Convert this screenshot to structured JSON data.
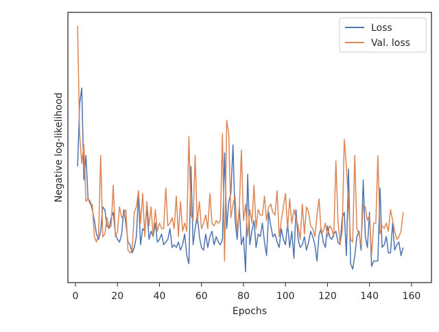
{
  "chart_data": {
    "type": "line",
    "xlabel": "Epochs",
    "ylabel": "Negative log-likelihood",
    "x": [
      1,
      2,
      3,
      4,
      5,
      6,
      7,
      8,
      9,
      10,
      11,
      12,
      13,
      14,
      15,
      16,
      17,
      18,
      19,
      20,
      21,
      22,
      23,
      24,
      25,
      26,
      27,
      28,
      29,
      30,
      31,
      32,
      33,
      34,
      35,
      36,
      37,
      38,
      39,
      40,
      41,
      42,
      43,
      44,
      45,
      46,
      47,
      48,
      49,
      50,
      51,
      52,
      53,
      54,
      55,
      56,
      57,
      58,
      59,
      60,
      61,
      62,
      63,
      64,
      65,
      66,
      67,
      68,
      69,
      70,
      71,
      72,
      73,
      74,
      75,
      76,
      77,
      78,
      79,
      80,
      81,
      82,
      83,
      84,
      85,
      86,
      87,
      88,
      89,
      90,
      91,
      92,
      93,
      94,
      95,
      96,
      97,
      98,
      99,
      100,
      101,
      102,
      103,
      104,
      105,
      106,
      107,
      108,
      109,
      110,
      111,
      112,
      113,
      114,
      115,
      116,
      117,
      118,
      119,
      120,
      121,
      122,
      123,
      124,
      125,
      126,
      127,
      128,
      129,
      130,
      131,
      132,
      133,
      134,
      135,
      136,
      137,
      138,
      139,
      140,
      141,
      142,
      143,
      144,
      145,
      146,
      147,
      148,
      149,
      150,
      151,
      152,
      153,
      154,
      155,
      156
    ],
    "series": [
      {
        "name": "Loss",
        "color": "#4c72b0",
        "values": [
          43,
          66,
          72,
          38,
          47,
          31,
          30,
          27,
          23,
          18,
          16,
          19,
          28,
          27,
          21,
          20,
          24,
          26,
          18,
          16,
          15,
          18,
          27,
          22,
          15,
          14,
          11,
          13,
          17,
          33,
          14,
          20,
          19,
          28,
          16,
          19,
          17,
          22,
          15,
          16,
          18,
          14,
          15,
          16,
          20,
          13,
          14,
          13,
          15,
          12,
          14,
          18,
          10,
          7,
          43,
          14,
          20,
          25,
          17,
          13,
          12,
          18,
          13,
          17,
          19,
          14,
          17,
          15,
          14,
          16,
          48,
          20,
          30,
          33,
          51,
          23,
          16,
          28,
          14,
          17,
          4,
          40,
          14,
          19,
          23,
          13,
          18,
          17,
          22,
          15,
          10,
          26,
          21,
          17,
          18,
          15,
          13,
          20,
          16,
          14,
          22,
          13,
          19,
          9,
          27,
          16,
          13,
          14,
          17,
          12,
          15,
          19,
          17,
          14,
          8,
          18,
          20,
          15,
          13,
          21,
          17,
          16,
          18,
          19,
          15,
          14,
          24,
          26,
          10,
          42,
          7,
          5,
          10,
          17,
          19,
          12,
          38,
          17,
          13,
          26,
          6,
          8,
          8,
          8,
          35,
          13,
          14,
          17,
          11,
          11,
          22,
          12,
          14,
          15,
          10,
          13
        ]
      },
      {
        "name": "Val. loss",
        "color": "#dd8452",
        "values": [
          95,
          55,
          44,
          51,
          30,
          31,
          29,
          29,
          17,
          15,
          18,
          47,
          17,
          18,
          24,
          20,
          21,
          36,
          17,
          19,
          28,
          24,
          25,
          27,
          12,
          11,
          12,
          26,
          28,
          34,
          22,
          33,
          17,
          30,
          21,
          28,
          17,
          27,
          19,
          22,
          20,
          20,
          35,
          21,
          22,
          24,
          20,
          32,
          17,
          30,
          19,
          22,
          19,
          54,
          25,
          23,
          47,
          22,
          30,
          20,
          22,
          25,
          20,
          33,
          22,
          21,
          23,
          22,
          23,
          55,
          8,
          60,
          55,
          24,
          29,
          32,
          19,
          27,
          49,
          23,
          29,
          17,
          27,
          22,
          36,
          20,
          27,
          25,
          25,
          32,
          23,
          28,
          29,
          26,
          25,
          34,
          17,
          23,
          28,
          33,
          20,
          31,
          22,
          27,
          24,
          21,
          16,
          29,
          18,
          28,
          26,
          21,
          20,
          17,
          25,
          31,
          18,
          19,
          22,
          17,
          21,
          20,
          17,
          45,
          23,
          14,
          19,
          53,
          43,
          29,
          16,
          15,
          47,
          20,
          18,
          14,
          29,
          28,
          23,
          25,
          10,
          22,
          22,
          47,
          18,
          21,
          20,
          22,
          19,
          27,
          23,
          19,
          16,
          17,
          19,
          26
        ]
      }
    ],
    "xlim": [
      -3.6,
      169.5
    ],
    "ylim": [
      0,
      100
    ],
    "xticks": [
      0,
      20,
      40,
      60,
      80,
      100,
      120,
      140,
      160
    ],
    "legend": "upper right"
  }
}
